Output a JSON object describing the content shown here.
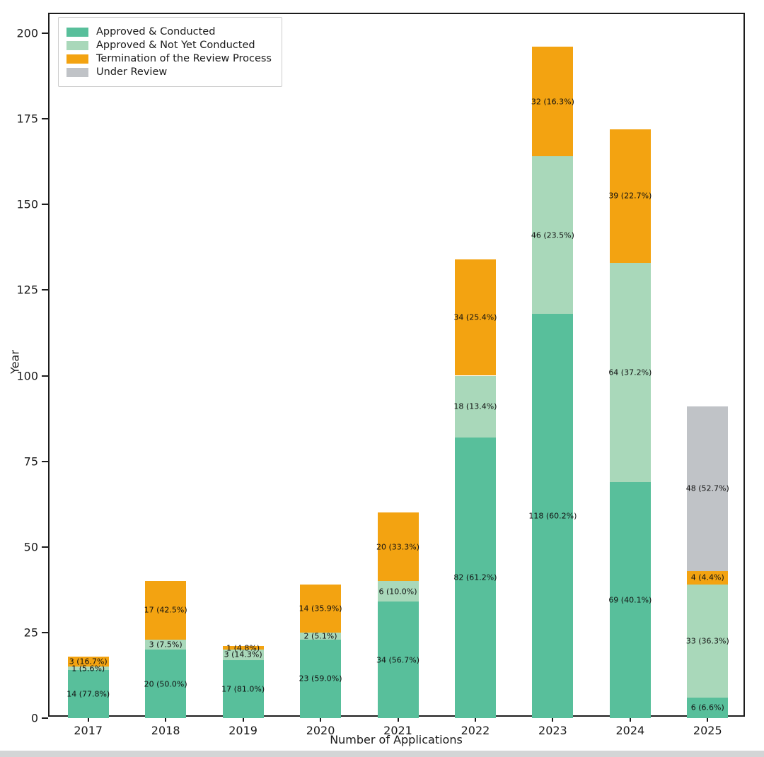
{
  "chart_data": {
    "type": "bar",
    "stacked": true,
    "title": "",
    "xlabel": "Number of Applications",
    "ylabel": "Year",
    "categories": [
      "2017",
      "2018",
      "2019",
      "2020",
      "2021",
      "2022",
      "2023",
      "2024",
      "2025"
    ],
    "series": [
      {
        "name": "Approved & Conducted",
        "color": "#58bf9b",
        "values": [
          14,
          20,
          17,
          23,
          34,
          82,
          118,
          69,
          6
        ],
        "labels": [
          "14 (77.8%)",
          "20 (50.0%)",
          "17 (81.0%)",
          "23 (59.0%)",
          "34 (56.7%)",
          "82 (61.2%)",
          "118 (60.2%)",
          "69 (40.1%)",
          "6 (6.6%)"
        ]
      },
      {
        "name": "Approved & Not Yet Conducted",
        "color": "#a9d8ba",
        "values": [
          1,
          3,
          3,
          2,
          6,
          18,
          46,
          64,
          33
        ],
        "labels": [
          "1 (5.6%)",
          "3 (7.5%)",
          "3 (14.3%)",
          "2 (5.1%)",
          "6 (10.0%)",
          "18 (13.4%)",
          "46 (23.5%)",
          "64 (37.2%)",
          "33 (36.3%)"
        ]
      },
      {
        "name": "Termination of the Review Process",
        "color": "#f3a311",
        "values": [
          3,
          17,
          1,
          14,
          20,
          34,
          32,
          39,
          4
        ],
        "labels": [
          "3 (16.7%)",
          "17 (42.5%)",
          "1 (4.8%)",
          "14 (35.9%)",
          "20 (33.3%)",
          "34 (25.4%)",
          "32 (16.3%)",
          "39 (22.7%)",
          "4 (4.4%)"
        ]
      },
      {
        "name": "Under Review",
        "color": "#c0c3c7",
        "values": [
          0,
          0,
          0,
          0,
          0,
          0,
          0,
          0,
          48
        ],
        "labels": [
          "",
          "",
          "",
          "",
          "",
          "",
          "",
          "",
          "48 (52.7%)"
        ]
      }
    ],
    "totals": [
      18,
      40,
      21,
      39,
      60,
      134,
      196,
      172,
      91
    ],
    "ylim": [
      0,
      200
    ],
    "yticks": [
      0,
      25,
      50,
      75,
      100,
      125,
      150,
      175,
      200
    ],
    "grid": false,
    "legend_position": "upper-left"
  }
}
